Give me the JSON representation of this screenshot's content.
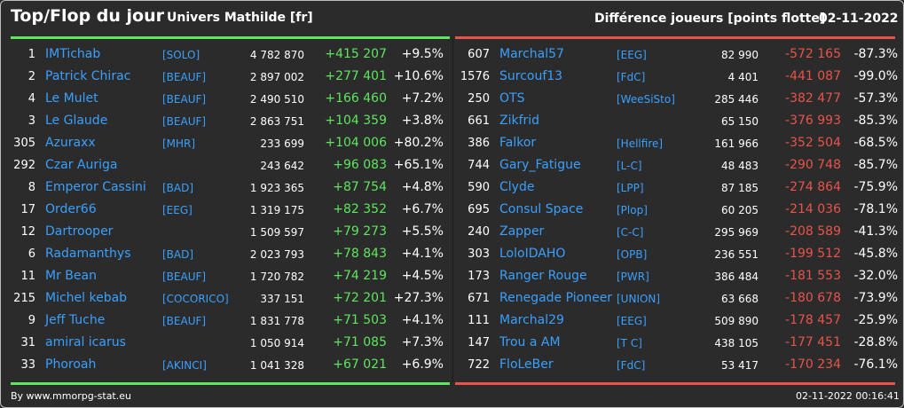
{
  "header": {
    "title": "Top/Flop du jour",
    "universe": "Univers Mathilde [fr]",
    "right_title": "Différence joueurs [points flotte]",
    "date": "02-11-2022"
  },
  "colors": {
    "top_accent": "#5ee65e",
    "flop_accent": "#e9534a",
    "name_link": "#3aa0ff",
    "background": "#2b2b2b"
  },
  "top": [
    {
      "rank": "1",
      "name": "IMTichab",
      "alliance": "[SOLO]",
      "points": "4 782 870",
      "diff": "+415 207",
      "pct": "+9.5%"
    },
    {
      "rank": "2",
      "name": "Patrick Chirac",
      "alliance": "[BEAUF]",
      "points": "2 897 002",
      "diff": "+277 401",
      "pct": "+10.6%"
    },
    {
      "rank": "4",
      "name": "Le Mulet",
      "alliance": "[BEAUF]",
      "points": "2 490 510",
      "diff": "+166 460",
      "pct": "+7.2%"
    },
    {
      "rank": "3",
      "name": "Le Glaude",
      "alliance": "[BEAUF]",
      "points": "2 863 751",
      "diff": "+104 359",
      "pct": "+3.8%"
    },
    {
      "rank": "305",
      "name": "Azuraxx",
      "alliance": "[MHR]",
      "points": "233 699",
      "diff": "+104 006",
      "pct": "+80.2%"
    },
    {
      "rank": "292",
      "name": "Czar Auriga",
      "alliance": "",
      "points": "243 642",
      "diff": "+96 083",
      "pct": "+65.1%"
    },
    {
      "rank": "8",
      "name": "Emperor Cassini",
      "alliance": "[BAD]",
      "points": "1 923 365",
      "diff": "+87 754",
      "pct": "+4.8%"
    },
    {
      "rank": "17",
      "name": "Order66",
      "alliance": "[EEG]",
      "points": "1 319 175",
      "diff": "+82 352",
      "pct": "+6.7%"
    },
    {
      "rank": "12",
      "name": "Dartrooper",
      "alliance": "",
      "points": "1 509 597",
      "diff": "+79 273",
      "pct": "+5.5%"
    },
    {
      "rank": "6",
      "name": "Radamanthys",
      "alliance": "[BAD]",
      "points": "2 023 793",
      "diff": "+78 843",
      "pct": "+4.1%"
    },
    {
      "rank": "11",
      "name": "Mr Bean",
      "alliance": "[BEAUF]",
      "points": "1 720 782",
      "diff": "+74 219",
      "pct": "+4.5%"
    },
    {
      "rank": "215",
      "name": "Michel kebab",
      "alliance": "[COCORICO]",
      "points": "337 151",
      "diff": "+72 201",
      "pct": "+27.3%"
    },
    {
      "rank": "9",
      "name": "Jeff Tuche",
      "alliance": "[BEAUF]",
      "points": "1 831 778",
      "diff": "+71 503",
      "pct": "+4.1%"
    },
    {
      "rank": "31",
      "name": "amiral icarus",
      "alliance": "",
      "points": "1 050 914",
      "diff": "+71 085",
      "pct": "+7.3%"
    },
    {
      "rank": "33",
      "name": "Phoroah",
      "alliance": "[AKINCI]",
      "points": "1 041 328",
      "diff": "+67 021",
      "pct": "+6.9%"
    }
  ],
  "flop": [
    {
      "rank": "607",
      "name": "Marchal57",
      "alliance": "[EEG]",
      "points": "82 990",
      "diff": "-572 165",
      "pct": "-87.3%"
    },
    {
      "rank": "1576",
      "name": "Surcouf13",
      "alliance": "[FdC]",
      "points": "4 401",
      "diff": "-441 087",
      "pct": "-99.0%"
    },
    {
      "rank": "250",
      "name": "OTS",
      "alliance": "[WeeSiSto]",
      "points": "285 446",
      "diff": "-382 477",
      "pct": "-57.3%"
    },
    {
      "rank": "661",
      "name": "Zikfrid",
      "alliance": "",
      "points": "65 150",
      "diff": "-376 993",
      "pct": "-85.3%"
    },
    {
      "rank": "386",
      "name": "Falkor",
      "alliance": "[Hellfire]",
      "points": "161 966",
      "diff": "-352 504",
      "pct": "-68.5%"
    },
    {
      "rank": "744",
      "name": "Gary_Fatigue",
      "alliance": "[L-C]",
      "points": "48 483",
      "diff": "-290 748",
      "pct": "-85.7%"
    },
    {
      "rank": "590",
      "name": "Clyde",
      "alliance": "[LPP]",
      "points": "87 185",
      "diff": "-274 864",
      "pct": "-75.9%"
    },
    {
      "rank": "695",
      "name": "Consul Space",
      "alliance": "[Plop]",
      "points": "60 205",
      "diff": "-214 036",
      "pct": "-78.1%"
    },
    {
      "rank": "240",
      "name": "Zapper",
      "alliance": "[C-C]",
      "points": "295 969",
      "diff": "-208 589",
      "pct": "-41.3%"
    },
    {
      "rank": "303",
      "name": "LoloIDAHO",
      "alliance": "[OPB]",
      "points": "236 551",
      "diff": "-199 512",
      "pct": "-45.8%"
    },
    {
      "rank": "173",
      "name": "Ranger Rouge",
      "alliance": "[PWR]",
      "points": "386 484",
      "diff": "-181 553",
      "pct": "-32.0%"
    },
    {
      "rank": "671",
      "name": "Renegade Pioneer",
      "alliance": "[UNION]",
      "points": "63 668",
      "diff": "-180 678",
      "pct": "-73.9%"
    },
    {
      "rank": "111",
      "name": "Marchal29",
      "alliance": "[EEG]",
      "points": "509 890",
      "diff": "-178 457",
      "pct": "-25.9%"
    },
    {
      "rank": "147",
      "name": "Trou a AM",
      "alliance": "[T C]",
      "points": "438 105",
      "diff": "-177 451",
      "pct": "-28.8%"
    },
    {
      "rank": "722",
      "name": "FloLeBer",
      "alliance": "[FdC]",
      "points": "53 417",
      "diff": "-170 234",
      "pct": "-76.1%"
    }
  ],
  "footer": {
    "source": "By www.mmorpg-stat.eu",
    "timestamp": "02-11-2022 00:16:41"
  }
}
